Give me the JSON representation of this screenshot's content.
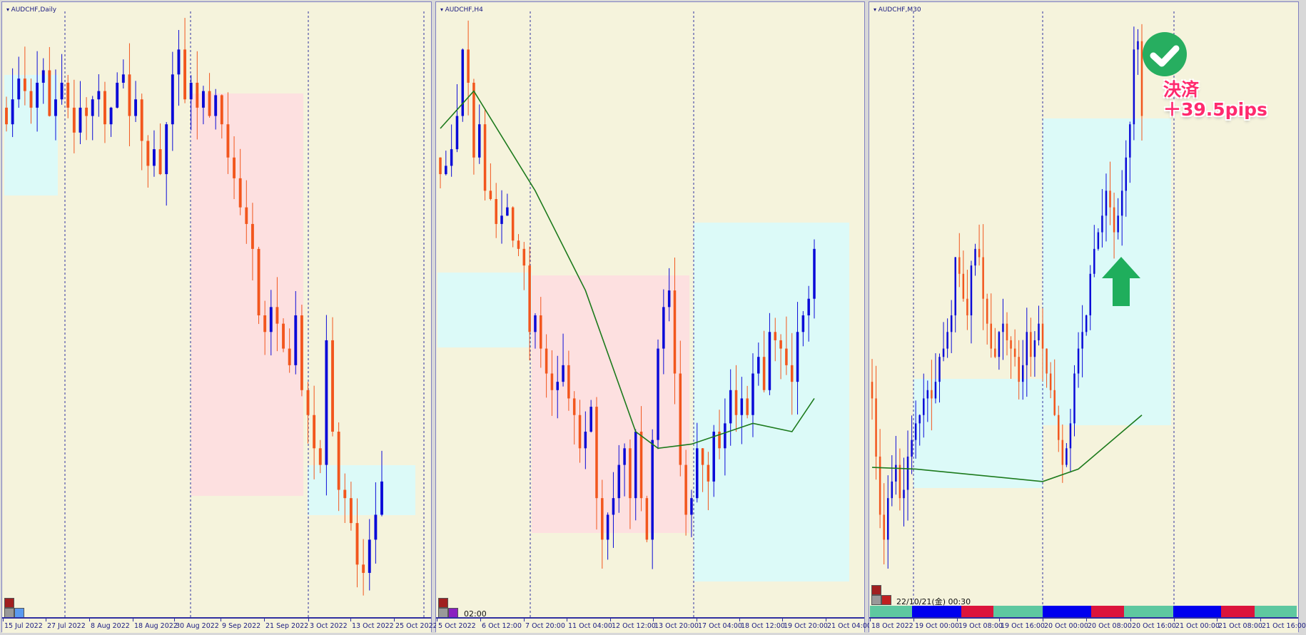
{
  "colors": {
    "bull": "#0a0ad8",
    "bear": "#f2561d",
    "ma": "#1c7a1c",
    "zone_buy": "#dcfaf8",
    "zone_sell": "#fde0e0",
    "background": "#f5f3dc"
  },
  "charts": [
    {
      "title": "AUDCHF,Daily",
      "price_range": [
        0.6255,
        0.6985
      ],
      "closes": [
        0.685,
        0.688,
        0.6905,
        0.689,
        0.687,
        0.69,
        0.6915,
        0.686,
        0.688,
        0.69,
        0.687,
        0.684,
        0.687,
        0.686,
        0.688,
        0.689,
        0.685,
        0.687,
        0.69,
        0.691,
        0.686,
        0.688,
        0.683,
        0.68,
        0.682,
        0.679,
        0.685,
        0.691,
        0.694,
        0.688,
        0.69,
        0.687,
        0.689,
        0.686,
        0.6885,
        0.685,
        0.681,
        0.6785,
        0.675,
        0.673,
        0.67,
        0.662,
        0.66,
        0.663,
        0.661,
        0.658,
        0.656,
        0.662,
        0.653,
        0.65,
        0.646,
        0.644,
        0.659,
        0.648,
        0.641,
        0.64,
        0.637,
        0.632,
        0.631,
        0.635,
        0.638,
        0.642
      ],
      "ma": [],
      "time_labels": [
        "15 Jul 2022",
        "27 Jul 2022",
        "8 Aug 2022",
        "18 Aug 2022",
        "30 Aug 2022",
        "9 Sep 2022",
        "21 Sep 2022",
        "3 Oct 2022",
        "13 Oct 2022",
        "25 Oct 2022"
      ]
    },
    {
      "title": "AUDCHF,H4",
      "price_range": [
        0.6255,
        0.6985
      ],
      "stamp": "02:00",
      "closes": [
        0.679,
        0.68,
        0.682,
        0.686,
        0.694,
        0.69,
        0.681,
        0.685,
        0.677,
        0.676,
        0.673,
        0.674,
        0.675,
        0.671,
        0.67,
        0.668,
        0.66,
        0.662,
        0.658,
        0.655,
        0.653,
        0.654,
        0.656,
        0.652,
        0.65,
        0.646,
        0.648,
        0.651,
        0.64,
        0.635,
        0.638,
        0.64,
        0.644,
        0.646,
        0.64,
        0.648,
        0.64,
        0.635,
        0.647,
        0.658,
        0.663,
        0.665,
        0.655,
        0.644,
        0.638,
        0.64,
        0.646,
        0.644,
        0.642,
        0.648,
        0.646,
        0.649,
        0.653,
        0.65,
        0.652,
        0.65,
        0.655,
        0.657,
        0.653,
        0.66,
        0.659,
        0.658,
        0.656,
        0.654,
        0.66,
        0.662,
        0.664,
        0.67
      ],
      "ma": [
        [
          0,
          0.6845
        ],
        [
          6,
          0.689
        ],
        [
          17,
          0.677
        ],
        [
          26,
          0.665
        ],
        [
          35,
          0.648
        ],
        [
          39,
          0.646
        ],
        [
          45,
          0.6465
        ],
        [
          56,
          0.649
        ],
        [
          63,
          0.648
        ],
        [
          67,
          0.652
        ]
      ],
      "time_labels": [
        "5 Oct 2022",
        "6 Oct 12:00",
        "7 Oct 20:00",
        "11 Oct 04:00",
        "12 Oct 12:00",
        "13 Oct 20:00",
        "17 Oct 04:00",
        "18 Oct 12:00",
        "19 Oct 20:00",
        "21 Oct 04:00"
      ]
    },
    {
      "title": "AUDCHF,M30",
      "price_range": [
        0.6255,
        0.6985
      ],
      "stamp": "22/10/21(金) 00:30",
      "closes": [
        0.652,
        0.645,
        0.638,
        0.635,
        0.64,
        0.642,
        0.644,
        0.64,
        0.641,
        0.645,
        0.647,
        0.649,
        0.65,
        0.652,
        0.653,
        0.652,
        0.654,
        0.657,
        0.658,
        0.66,
        0.662,
        0.669,
        0.667,
        0.664,
        0.662,
        0.668,
        0.67,
        0.669,
        0.664,
        0.661,
        0.658,
        0.657,
        0.66,
        0.661,
        0.659,
        0.658,
        0.657,
        0.654,
        0.656,
        0.66,
        0.657,
        0.659,
        0.661,
        0.658,
        0.655,
        0.653,
        0.65,
        0.647,
        0.644,
        0.646,
        0.649,
        0.655,
        0.658,
        0.66,
        0.662,
        0.667,
        0.67,
        0.672,
        0.674,
        0.677,
        0.675,
        0.672,
        0.674,
        0.677,
        0.681,
        0.685,
        0.694,
        0.695,
        0.686
      ],
      "ma": [
        [
          0,
          0.6437
        ],
        [
          11,
          0.6435
        ],
        [
          43,
          0.642
        ],
        [
          52,
          0.6435
        ],
        [
          68,
          0.65
        ]
      ],
      "time_labels": [
        "18 Oct 2022",
        "19 Oct 00:00",
        "19 Oct 08:00",
        "19 Oct 16:00",
        "20 Oct 00:00",
        "20 Oct 08:00",
        "20 Oct 16:00",
        "21 Oct 00:00",
        "21 Oct 08:00",
        "21 Oct 16:00"
      ],
      "session_bar": [
        "#5ec8a0",
        "#0000ee",
        "#dc143c",
        "#5ec8a0",
        "#0000ee",
        "#dc143c",
        "#5ec8a0",
        "#0000ee",
        "#dc143c",
        "#5ec8a0"
      ]
    }
  ],
  "annotation": {
    "line1": "決済",
    "line2": "＋39.5pips",
    "check_color": "#27ae60",
    "arrow_color": "#1fae5c"
  }
}
